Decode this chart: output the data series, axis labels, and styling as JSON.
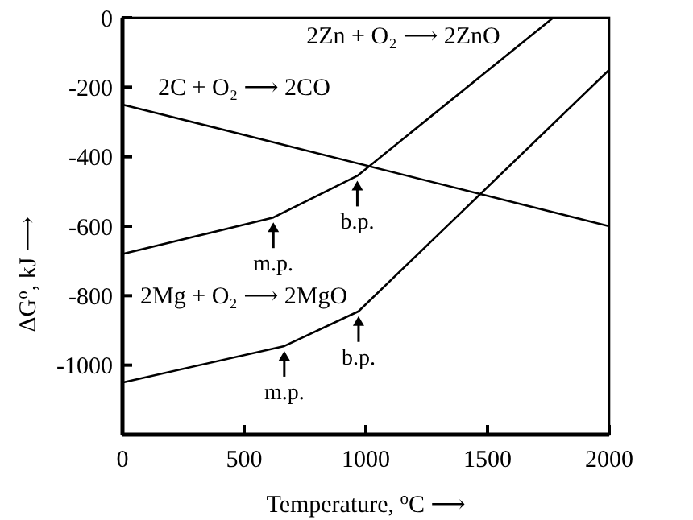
{
  "chart_data": {
    "type": "line",
    "xlabel": "Temperature, $^{o}$C ⟶",
    "ylabel": "ΔG$^{o}$, kJ ⟶",
    "xlim": [
      0,
      2000
    ],
    "ylim": [
      -1200,
      0
    ],
    "xticks": [
      0,
      500,
      1000,
      1500,
      2000
    ],
    "yticks": [
      0,
      -200,
      -400,
      -600,
      -800,
      -1000
    ],
    "grid": false,
    "marker": "none",
    "line_style": "solid",
    "series": [
      {
        "name": "2Zn + O₂ ⟶ 2ZnO",
        "color": "#000000",
        "x": [
          0,
          620,
          965,
          1770
        ],
        "values": [
          -680,
          -575,
          -455,
          0
        ]
      },
      {
        "name": "2C + O₂ ⟶ 2CO",
        "color": "#000000",
        "x": [
          0,
          2000
        ],
        "values": [
          -250,
          -600
        ]
      },
      {
        "name": "2Mg + O₂ ⟶ 2MgO",
        "color": "#000000",
        "x": [
          0,
          665,
          970,
          2000
        ],
        "values": [
          -1050,
          -945,
          -845,
          -150
        ]
      }
    ],
    "annotations": [
      {
        "text": "m.p.",
        "x": 620,
        "y": -575
      },
      {
        "text": "b.p.",
        "x": 965,
        "y": -455
      },
      {
        "text": "m.p.",
        "x": 665,
        "y": -945
      },
      {
        "text": "b.p.",
        "x": 970,
        "y": -845
      }
    ]
  }
}
